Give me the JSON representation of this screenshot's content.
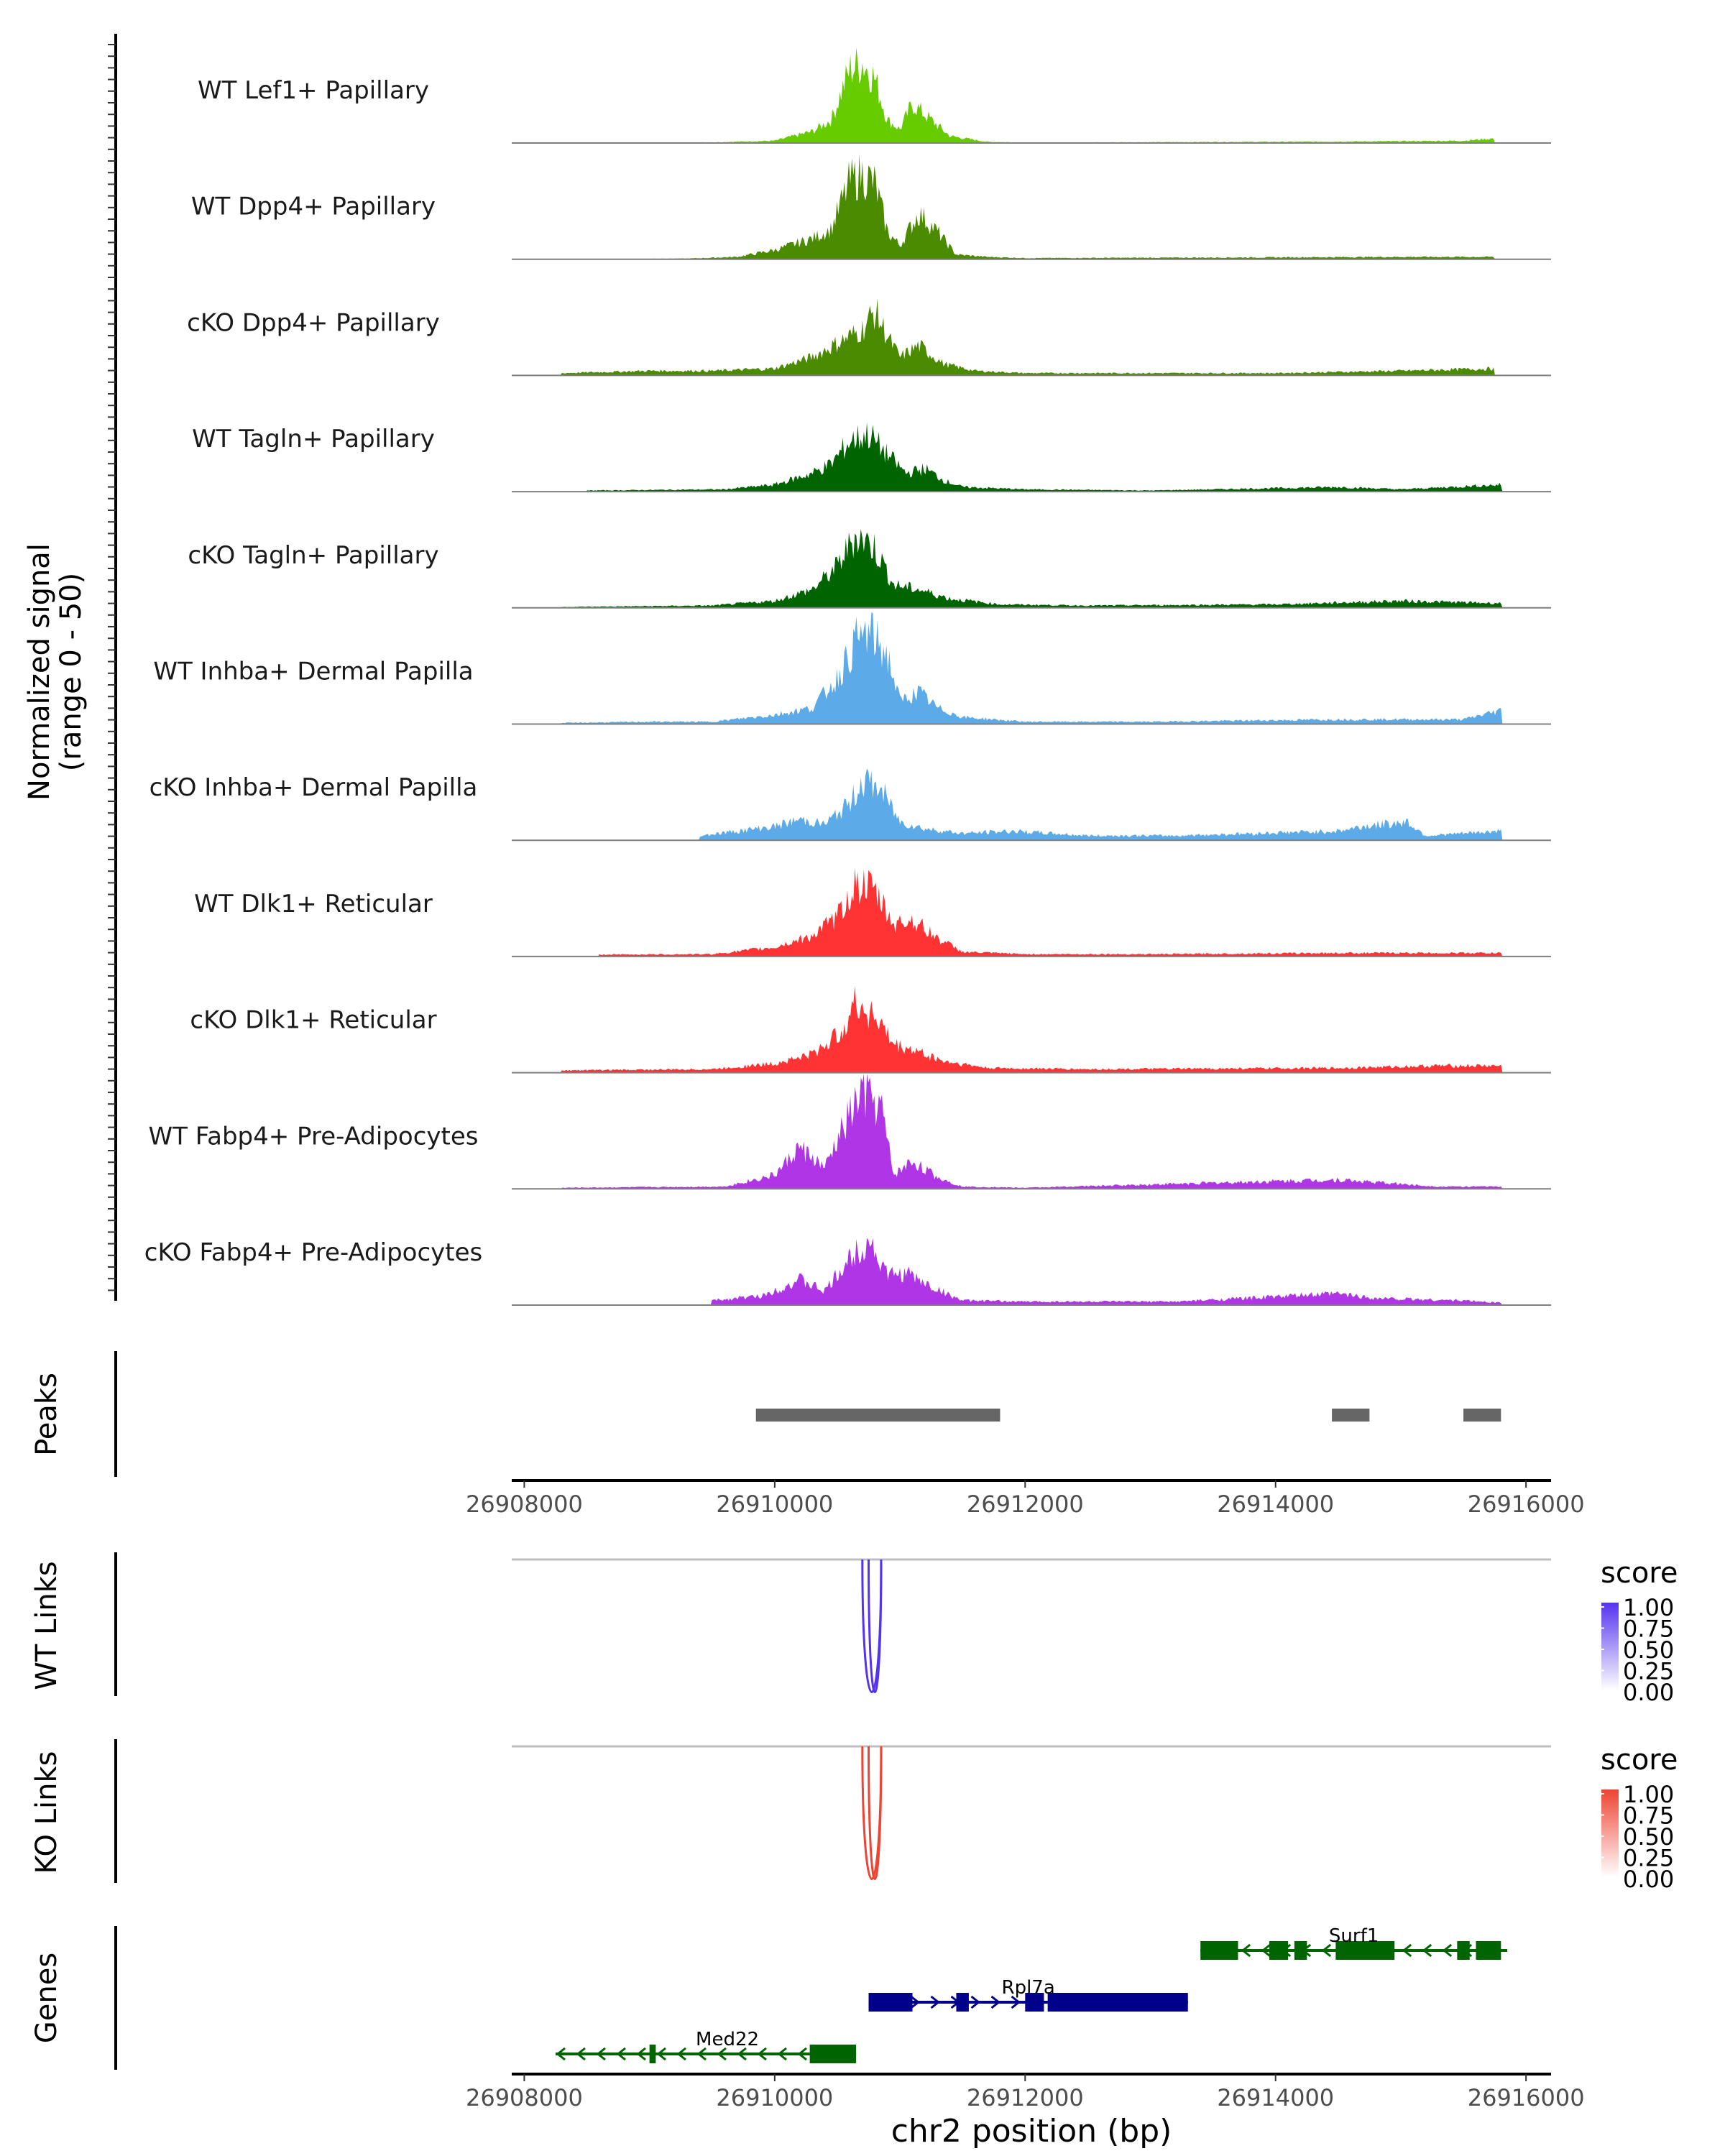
{
  "chart_data": {
    "type": "area",
    "region": "chr2",
    "xlim": [
      26907900,
      26916200
    ],
    "x_ticks": [
      26908000,
      26910000,
      26912000,
      26914000,
      26916000
    ],
    "x_tick_labels": [
      "26908000",
      "26910000",
      "26912000",
      "26914000",
      "26916000"
    ],
    "xlabel": "chr2 position (bp)",
    "coverage": {
      "ylabel_line1": "Normalized signal",
      "ylabel_line2": "(range 0 - 50)",
      "ylim": [
        0,
        50
      ],
      "tracks": [
        {
          "name": "WT Lef1+ Papillary",
          "color": "#66CC00",
          "profile": [
            [
              26908000,
              0
            ],
            [
              26909500,
              0.3
            ],
            [
              26910000,
              1
            ],
            [
              26910300,
              5
            ],
            [
              26910450,
              10
            ],
            [
              26910600,
              32
            ],
            [
              26910700,
              35
            ],
            [
              26910800,
              28
            ],
            [
              26910900,
              10
            ],
            [
              26911000,
              6
            ],
            [
              26911100,
              17
            ],
            [
              26911250,
              10
            ],
            [
              26911400,
              3
            ],
            [
              26911700,
              0.5
            ],
            [
              26912000,
              0.2
            ],
            [
              26914500,
              0.6
            ],
            [
              26915500,
              1
            ],
            [
              26915750,
              2
            ]
          ]
        },
        {
          "name": "WT Dpp4+ Papillary",
          "color": "#4B8B00",
          "profile": [
            [
              26908000,
              0
            ],
            [
              26909300,
              0.3
            ],
            [
              26909700,
              1
            ],
            [
              26910000,
              4
            ],
            [
              26910300,
              9
            ],
            [
              26910450,
              13
            ],
            [
              26910600,
              34
            ],
            [
              26910700,
              37
            ],
            [
              26910800,
              33
            ],
            [
              26910900,
              12
            ],
            [
              26911000,
              6
            ],
            [
              26911150,
              20
            ],
            [
              26911300,
              12
            ],
            [
              26911450,
              2
            ],
            [
              26911700,
              1
            ],
            [
              26912000,
              0.5
            ],
            [
              26914000,
              0.8
            ],
            [
              26915000,
              1
            ],
            [
              26915750,
              1
            ]
          ]
        },
        {
          "name": "cKO Dpp4+ Papillary",
          "color": "#4B8B00",
          "profile": [
            [
              26908300,
              1
            ],
            [
              26909000,
              2
            ],
            [
              26909500,
              2
            ],
            [
              26910000,
              3
            ],
            [
              26910300,
              8
            ],
            [
              26910500,
              14
            ],
            [
              26910700,
              20
            ],
            [
              26910800,
              28
            ],
            [
              26910900,
              17
            ],
            [
              26911000,
              8
            ],
            [
              26911150,
              13
            ],
            [
              26911350,
              5
            ],
            [
              26911600,
              2
            ],
            [
              26912000,
              1
            ],
            [
              26914000,
              1
            ],
            [
              26915000,
              2
            ],
            [
              26915750,
              3
            ]
          ]
        },
        {
          "name": "WT Tagln+ Papillary",
          "color": "#006400",
          "profile": [
            [
              26908500,
              0.5
            ],
            [
              26909600,
              1
            ],
            [
              26910000,
              3
            ],
            [
              26910300,
              8
            ],
            [
              26910450,
              12
            ],
            [
              26910600,
              22
            ],
            [
              26910750,
              25
            ],
            [
              26910900,
              16
            ],
            [
              26911050,
              8
            ],
            [
              26911200,
              10
            ],
            [
              26911350,
              5
            ],
            [
              26911500,
              2
            ],
            [
              26912000,
              1
            ],
            [
              26913000,
              0.5
            ],
            [
              26914500,
              2
            ],
            [
              26915000,
              1
            ],
            [
              26915800,
              3
            ]
          ]
        },
        {
          "name": "cKO Tagln+ Papillary",
          "color": "#006400",
          "profile": [
            [
              26908300,
              0.4
            ],
            [
              26909500,
              1
            ],
            [
              26910000,
              3
            ],
            [
              26910300,
              8
            ],
            [
              26910500,
              18
            ],
            [
              26910650,
              32
            ],
            [
              26910800,
              26
            ],
            [
              26910950,
              10
            ],
            [
              26911150,
              8
            ],
            [
              26911400,
              4
            ],
            [
              26911800,
              1.5
            ],
            [
              26912500,
              1
            ],
            [
              26914000,
              1.5
            ],
            [
              26915000,
              3
            ],
            [
              26915800,
              2
            ]
          ]
        },
        {
          "name": "WT Inhba+ Dermal Papilla",
          "color": "#5DAAE8",
          "profile": [
            [
              26908300,
              0.5
            ],
            [
              26909000,
              1
            ],
            [
              26909500,
              1
            ],
            [
              26910000,
              4
            ],
            [
              26910300,
              7
            ],
            [
              26910500,
              20
            ],
            [
              26910650,
              36
            ],
            [
              26910750,
              40
            ],
            [
              26910900,
              30
            ],
            [
              26911000,
              10
            ],
            [
              26911150,
              14
            ],
            [
              26911300,
              7
            ],
            [
              26911500,
              3
            ],
            [
              26912000,
              1
            ],
            [
              26913000,
              1
            ],
            [
              26914500,
              2
            ],
            [
              26915500,
              2
            ],
            [
              26915800,
              6
            ]
          ]
        },
        {
          "name": "cKO Inhba+ Dermal Papilla",
          "color": "#5DAAE8",
          "profile": [
            [
              26909400,
              2
            ],
            [
              26910000,
              6
            ],
            [
              26910200,
              9
            ],
            [
              26910400,
              7
            ],
            [
              26910600,
              16
            ],
            [
              26910700,
              26
            ],
            [
              26910850,
              22
            ],
            [
              26911000,
              8
            ],
            [
              26911200,
              5
            ],
            [
              26911500,
              3
            ],
            [
              26911900,
              4
            ],
            [
              26912500,
              2
            ],
            [
              26913200,
              2
            ],
            [
              26914500,
              4
            ],
            [
              26914700,
              6
            ],
            [
              26915050,
              8
            ],
            [
              26915200,
              2
            ],
            [
              26915800,
              4
            ]
          ]
        },
        {
          "name": "WT Dlk1+ Reticular",
          "color": "#FF3333",
          "profile": [
            [
              26908600,
              0.8
            ],
            [
              26909500,
              1
            ],
            [
              26910000,
              4
            ],
            [
              26910300,
              9
            ],
            [
              26910500,
              17
            ],
            [
              26910650,
              32
            ],
            [
              26910800,
              28
            ],
            [
              26910950,
              14
            ],
            [
              26911100,
              16
            ],
            [
              26911300,
              8
            ],
            [
              26911500,
              2
            ],
            [
              26912000,
              1
            ],
            [
              26913000,
              1
            ],
            [
              26914500,
              1.5
            ],
            [
              26915800,
              1.5
            ]
          ]
        },
        {
          "name": "cKO Dlk1+ Reticular",
          "color": "#FF3333",
          "profile": [
            [
              26908300,
              1
            ],
            [
              26909500,
              1.5
            ],
            [
              26910000,
              4
            ],
            [
              26910300,
              8
            ],
            [
              26910500,
              16
            ],
            [
              26910650,
              30
            ],
            [
              26910800,
              25
            ],
            [
              26910950,
              12
            ],
            [
              26911100,
              10
            ],
            [
              26911350,
              5
            ],
            [
              26911700,
              2
            ],
            [
              26912500,
              1.5
            ],
            [
              26914500,
              2
            ],
            [
              26915300,
              3
            ],
            [
              26915800,
              3
            ]
          ]
        },
        {
          "name": "WT Fabp4+ Pre-Adipocytes",
          "color": "#B035E6",
          "profile": [
            [
              26908300,
              0.5
            ],
            [
              26909600,
              1
            ],
            [
              26910000,
              6
            ],
            [
              26910200,
              18
            ],
            [
              26910400,
              9
            ],
            [
              26910600,
              32
            ],
            [
              26910700,
              42
            ],
            [
              26910850,
              35
            ],
            [
              26910950,
              6
            ],
            [
              26911100,
              12
            ],
            [
              26911300,
              5
            ],
            [
              26911500,
              1
            ],
            [
              26912000,
              0.5
            ],
            [
              26914500,
              4
            ],
            [
              26915300,
              1
            ],
            [
              26915800,
              1
            ]
          ]
        },
        {
          "name": "cKO Fabp4+ Pre-Adipocytes",
          "color": "#B035E6",
          "profile": [
            [
              26909500,
              2
            ],
            [
              26909900,
              4
            ],
            [
              26910200,
              11
            ],
            [
              26910400,
              6
            ],
            [
              26910600,
              20
            ],
            [
              26910750,
              29
            ],
            [
              26910900,
              13
            ],
            [
              26911050,
              14
            ],
            [
              26911250,
              8
            ],
            [
              26911500,
              2
            ],
            [
              26912000,
              1.5
            ],
            [
              26913200,
              1.5
            ],
            [
              26914500,
              5
            ],
            [
              26914800,
              3
            ],
            [
              26915500,
              2
            ],
            [
              26915800,
              1
            ]
          ]
        }
      ]
    },
    "peaks": {
      "label": "Peaks",
      "ranges": [
        [
          26909850,
          26911800
        ],
        [
          26914450,
          26914750
        ],
        [
          26915500,
          26915800
        ]
      ]
    },
    "links": [
      {
        "label": "WT Links",
        "color": "#5533EE",
        "arcs": [
          [
            26910700,
            26910850
          ],
          [
            26910750,
            26910850
          ]
        ],
        "score": 1.0,
        "legend_title": "score",
        "legend_ticks": [
          "1.00",
          "0.75",
          "0.50",
          "0.25",
          "0.00"
        ]
      },
      {
        "label": "KO Links",
        "color": "#EE4433",
        "arcs": [
          [
            26910700,
            26910850
          ],
          [
            26910750,
            26910850
          ]
        ],
        "score": 1.0,
        "legend_title": "score",
        "legend_ticks": [
          "1.00",
          "0.75",
          "0.50",
          "0.25",
          "0.00"
        ]
      }
    ],
    "genes": {
      "label": "Genes",
      "items": [
        {
          "name": "Surf1",
          "strand": "-",
          "color": "#006400",
          "start": 26913400,
          "end": 26915850,
          "row": 0,
          "exons": [
            [
              26913400,
              26913700
            ],
            [
              26913950,
              26914100
            ],
            [
              26914150,
              26914250
            ],
            [
              26914480,
              26914950
            ],
            [
              26915450,
              26915550
            ],
            [
              26915600,
              26915800
            ]
          ]
        },
        {
          "name": "Rpl7a",
          "strand": "+",
          "color": "#00008B",
          "start": 26910750,
          "end": 26913300,
          "row": 1,
          "exons": [
            [
              26910750,
              26911100
            ],
            [
              26911450,
              26911550
            ],
            [
              26912000,
              26912150
            ],
            [
              26912180,
              26913300
            ]
          ]
        },
        {
          "name": "Med22",
          "strand": "-",
          "color": "#006400",
          "start": 26908250,
          "end": 26910650,
          "row": 2,
          "exons": [
            [
              26909000,
              26909050
            ],
            [
              26910280,
              26910650
            ]
          ]
        }
      ]
    }
  }
}
